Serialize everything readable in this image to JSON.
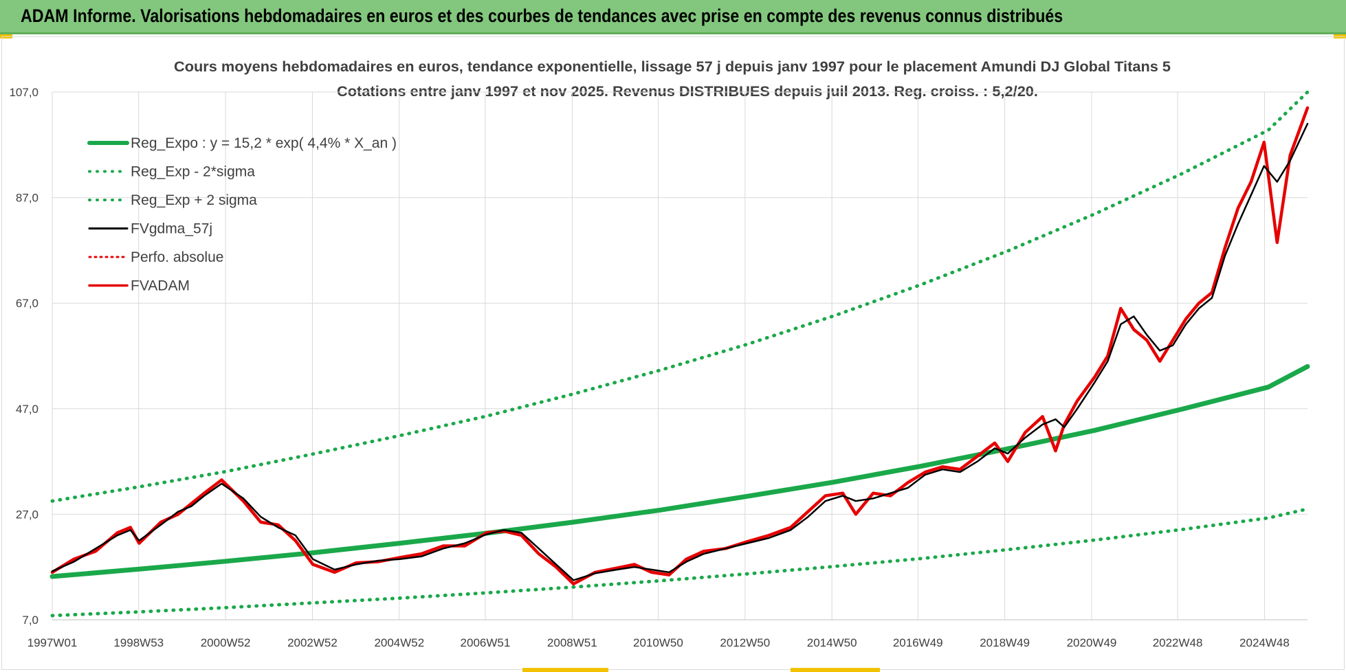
{
  "banner": {
    "title": "ADAM Informe. Valorisations hebdomadaires en euros et des courbes de tendances avec prise en compte des revenus connus distribués"
  },
  "colors": {
    "banner_bg": "#82c77d",
    "reg_expo": "#1aa84a",
    "sigma_bands": "#1aa84a",
    "fvgdma": "#000000",
    "perf_absolue": "#e60000",
    "fvadam": "#e60000",
    "grid": "#d9d9d9",
    "text": "#404040"
  },
  "chart_data": {
    "type": "line",
    "title": "Cours moyens hebdomadaires en euros, tendance exponentielle, lissage 57 j depuis janv 1997 pour le placement Amundi DJ Global Titans 5",
    "subtitle": "Cotations entre janv 1997 et nov 2025. Revenus DISTRIBUES depuis juil 2013. Reg. croiss. : 5,2/20.",
    "xlabel": "",
    "ylabel": "",
    "x_range": [
      1997.0,
      2025.9
    ],
    "ylim": [
      7.0,
      107.0
    ],
    "y_ticks": [
      7.0,
      27.0,
      47.0,
      67.0,
      87.0,
      107.0
    ],
    "y_tick_labels": [
      "7,0",
      "27,0",
      "47,0",
      "67,0",
      "87,0",
      "107,0"
    ],
    "x_ticks": [
      {
        "label": "1997W01",
        "x": 1997.0
      },
      {
        "label": "1998W53",
        "x": 1998.99
      },
      {
        "label": "2000W52",
        "x": 2000.99
      },
      {
        "label": "2002W52",
        "x": 2002.99
      },
      {
        "label": "2004W52",
        "x": 2004.99
      },
      {
        "label": "2006W51",
        "x": 2006.97
      },
      {
        "label": "2008W51",
        "x": 2008.97
      },
      {
        "label": "2010W50",
        "x": 2010.95
      },
      {
        "label": "2012W50",
        "x": 2012.95
      },
      {
        "label": "2014W50",
        "x": 2014.95
      },
      {
        "label": "2016W49",
        "x": 2016.93
      },
      {
        "label": "2018W49",
        "x": 2018.93
      },
      {
        "label": "2020W49",
        "x": 2020.93
      },
      {
        "label": "2022W48",
        "x": 2022.91
      },
      {
        "label": "2024W48",
        "x": 2024.91
      }
    ],
    "grid": true,
    "legend_position": "top-left",
    "series": [
      {
        "name": "Reg_Expo : y = 15,2 * exp( 4,4% *  X_an )",
        "style": "solid-thick",
        "x": [
          1997.0,
          1999.0,
          2001.0,
          2003.0,
          2005.0,
          2007.0,
          2009.0,
          2011.0,
          2013.0,
          2015.0,
          2017.0,
          2019.0,
          2021.0,
          2023.0,
          2025.0,
          2025.9
        ],
        "y": [
          15.2,
          16.6,
          18.1,
          19.7,
          21.5,
          23.4,
          25.5,
          27.8,
          30.4,
          33.1,
          36.1,
          39.4,
          42.9,
          46.9,
          51.1,
          55.0
        ]
      },
      {
        "name": "Reg_Exp - 2*sigma",
        "style": "dotted",
        "x": [
          1997.0,
          1999.0,
          2001.0,
          2003.0,
          2005.0,
          2007.0,
          2009.0,
          2011.0,
          2013.0,
          2015.0,
          2017.0,
          2019.0,
          2021.0,
          2023.0,
          2025.0,
          2025.9
        ],
        "y": [
          7.8,
          8.5,
          9.3,
          10.2,
          11.1,
          12.1,
          13.2,
          14.4,
          15.7,
          17.1,
          18.6,
          20.3,
          22.1,
          24.1,
          26.3,
          28.0
        ]
      },
      {
        "name": "Reg_Exp + 2 sigma",
        "style": "dotted",
        "x": [
          1997.0,
          1999.0,
          2001.0,
          2003.0,
          2005.0,
          2007.0,
          2009.0,
          2011.0,
          2013.0,
          2015.0,
          2017.0,
          2019.0,
          2021.0,
          2023.0,
          2025.0,
          2025.9
        ],
        "y": [
          29.5,
          32.2,
          35.1,
          38.4,
          41.9,
          45.6,
          49.8,
          54.3,
          59.2,
          64.6,
          70.5,
          76.9,
          83.9,
          91.5,
          99.8,
          107.0
        ]
      },
      {
        "name": "FVgdma_57j",
        "style": "solid-thin",
        "x": [
          1997.0,
          1997.5,
          1998.0,
          1998.5,
          1998.8,
          1999.0,
          1999.5,
          1999.9,
          2000.2,
          2000.5,
          2000.9,
          2001.4,
          2001.8,
          2002.2,
          2002.6,
          2003.0,
          2003.5,
          2004.0,
          2004.5,
          2005.0,
          2005.5,
          2006.0,
          2006.5,
          2007.0,
          2007.4,
          2007.8,
          2008.2,
          2008.6,
          2009.0,
          2009.5,
          2010.0,
          2010.4,
          2010.8,
          2011.2,
          2011.6,
          2012.0,
          2012.5,
          2013.0,
          2013.5,
          2014.0,
          2014.4,
          2014.8,
          2015.2,
          2015.5,
          2015.9,
          2016.3,
          2016.7,
          2017.1,
          2017.5,
          2017.9,
          2018.3,
          2018.7,
          2019.0,
          2019.4,
          2019.8,
          2020.1,
          2020.3,
          2020.6,
          2021.0,
          2021.3,
          2021.6,
          2021.9,
          2022.2,
          2022.5,
          2022.8,
          2023.1,
          2023.4,
          2023.7,
          2024.0,
          2024.3,
          2024.6,
          2024.9,
          2025.2,
          2025.5,
          2025.9
        ],
        "y": [
          16.2,
          18.0,
          20.5,
          23.0,
          24.0,
          22.0,
          25.0,
          27.5,
          28.5,
          30.5,
          32.8,
          30.0,
          26.5,
          24.5,
          23.0,
          18.5,
          16.5,
          17.5,
          18.2,
          18.5,
          19.0,
          20.5,
          21.5,
          23.2,
          24.0,
          23.5,
          20.5,
          17.5,
          14.5,
          15.8,
          16.5,
          17.0,
          16.5,
          16.0,
          18.0,
          19.5,
          20.5,
          21.5,
          22.5,
          24.0,
          26.5,
          29.5,
          30.5,
          29.5,
          30.0,
          31.0,
          32.0,
          34.5,
          35.5,
          35.0,
          37.0,
          39.5,
          38.5,
          41.5,
          44.0,
          45.0,
          43.5,
          47.0,
          52.0,
          56.0,
          63.0,
          64.5,
          61.0,
          58.0,
          59.0,
          63.0,
          66.0,
          68.0,
          76.0,
          82.0,
          87.5,
          93.0,
          90.0,
          94.0,
          101.0
        ]
      },
      {
        "name": "Perfo. absolue",
        "style": "dotted",
        "x": [],
        "y": []
      },
      {
        "name": "FVADAM",
        "style": "solid-thick",
        "x": [
          1997.0,
          1997.5,
          1998.0,
          1998.5,
          1998.8,
          1999.0,
          1999.5,
          1999.9,
          2000.2,
          2000.5,
          2000.9,
          2001.4,
          2001.8,
          2002.2,
          2002.6,
          2003.0,
          2003.5,
          2004.0,
          2004.5,
          2005.0,
          2005.5,
          2006.0,
          2006.5,
          2007.0,
          2007.4,
          2007.8,
          2008.2,
          2008.6,
          2009.0,
          2009.5,
          2010.0,
          2010.4,
          2010.8,
          2011.2,
          2011.6,
          2012.0,
          2012.5,
          2013.0,
          2013.5,
          2014.0,
          2014.4,
          2014.8,
          2015.2,
          2015.5,
          2015.9,
          2016.3,
          2016.7,
          2017.1,
          2017.5,
          2017.9,
          2018.3,
          2018.7,
          2019.0,
          2019.4,
          2019.8,
          2020.1,
          2020.3,
          2020.6,
          2021.0,
          2021.3,
          2021.6,
          2021.9,
          2022.2,
          2022.5,
          2022.8,
          2023.1,
          2023.4,
          2023.7,
          2024.0,
          2024.3,
          2024.6,
          2024.9,
          2025.2,
          2025.5,
          2025.9
        ],
        "y": [
          16.0,
          18.5,
          20.0,
          23.5,
          24.5,
          21.5,
          25.5,
          27.0,
          29.0,
          31.0,
          33.5,
          29.5,
          25.5,
          25.0,
          22.0,
          17.5,
          16.0,
          17.8,
          18.0,
          18.8,
          19.5,
          21.0,
          21.0,
          23.5,
          23.8,
          23.0,
          19.5,
          17.0,
          13.8,
          16.0,
          16.8,
          17.5,
          16.0,
          15.5,
          18.5,
          20.0,
          20.5,
          21.8,
          23.0,
          24.5,
          27.5,
          30.5,
          31.0,
          27.0,
          31.0,
          30.5,
          33.0,
          35.0,
          36.0,
          35.5,
          38.0,
          40.5,
          37.0,
          42.5,
          45.5,
          39.0,
          44.0,
          48.5,
          53.0,
          57.0,
          66.0,
          62.0,
          60.0,
          56.0,
          60.0,
          64.0,
          67.0,
          69.0,
          77.5,
          85.0,
          90.0,
          97.5,
          78.5,
          95.0,
          104.0
        ]
      }
    ]
  }
}
